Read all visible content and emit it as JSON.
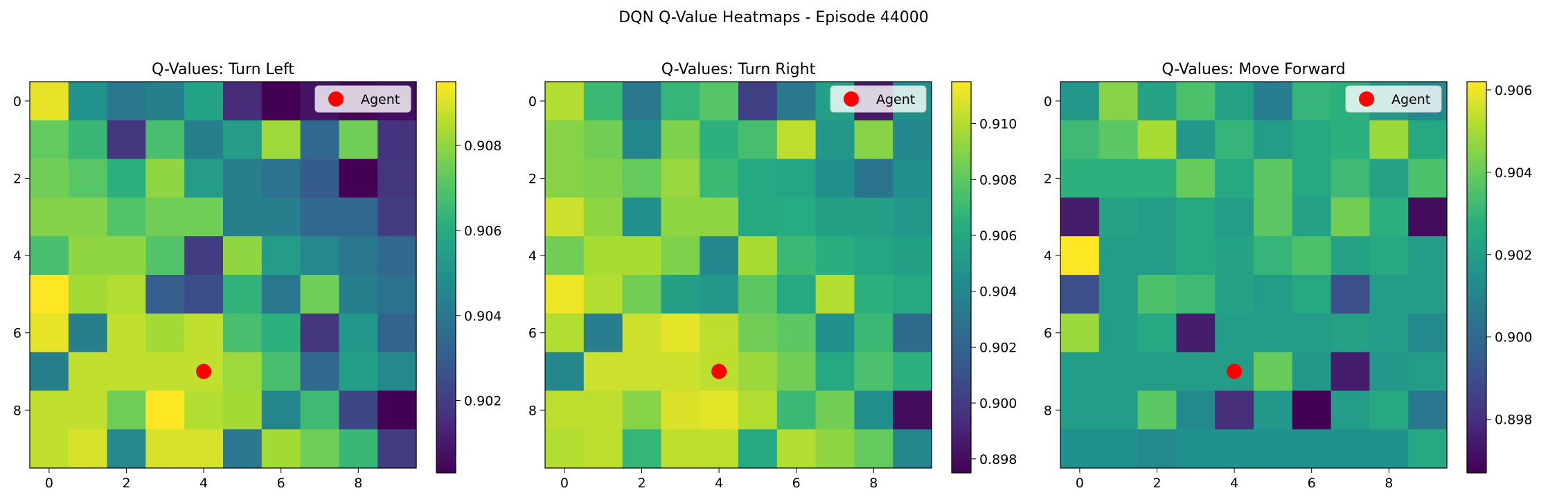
{
  "figure": {
    "title": "DQN Q-Value Heatmaps - Episode 44000"
  },
  "legend": {
    "label": "Agent",
    "marker_color": "#ff0000"
  },
  "colormap": "viridis",
  "chart_data": [
    {
      "type": "heatmap",
      "title": "Q-Values: Turn Left",
      "x_ticks": [
        "0",
        "2",
        "4",
        "6",
        "8"
      ],
      "y_ticks": [
        "0",
        "2",
        "4",
        "6",
        "8"
      ],
      "vmin": 0.9003,
      "vmax": 0.9095,
      "colorbar_ticks": [
        "0.902",
        "0.904",
        "0.906",
        "0.908"
      ],
      "colorbar_tick_values": [
        0.902,
        0.904,
        0.906,
        0.908
      ],
      "agent": {
        "col": 4,
        "row": 7
      },
      "legend_label": "Agent",
      "values": [
        [
          0.9092,
          0.905,
          0.904,
          0.9043,
          0.9057,
          0.9015,
          0.9003,
          0.9008,
          0.9005,
          0.9007
        ],
        [
          0.9073,
          0.9065,
          0.9018,
          0.9068,
          0.9043,
          0.9054,
          0.9082,
          0.9035,
          0.9075,
          0.9017
        ],
        [
          0.9075,
          0.9071,
          0.9062,
          0.908,
          0.9054,
          0.9043,
          0.9038,
          0.903,
          0.9003,
          0.9018
        ],
        [
          0.9078,
          0.9078,
          0.907,
          0.9075,
          0.9075,
          0.9043,
          0.9043,
          0.9035,
          0.9035,
          0.902
        ],
        [
          0.9068,
          0.908,
          0.908,
          0.907,
          0.902,
          0.908,
          0.9054,
          0.9046,
          0.904,
          0.9035
        ],
        [
          0.9095,
          0.9083,
          0.9085,
          0.9031,
          0.9025,
          0.9063,
          0.904,
          0.9075,
          0.9043,
          0.9038
        ],
        [
          0.9092,
          0.9043,
          0.9087,
          0.9083,
          0.9087,
          0.9068,
          0.9062,
          0.9018,
          0.9052,
          0.9033
        ],
        [
          0.9043,
          0.9087,
          0.9087,
          0.9087,
          0.9087,
          0.9082,
          0.9068,
          0.9035,
          0.9055,
          0.9046
        ],
        [
          0.9087,
          0.9087,
          0.9075,
          0.9095,
          0.9085,
          0.9083,
          0.9045,
          0.9066,
          0.9023,
          0.9003
        ],
        [
          0.9087,
          0.909,
          0.9046,
          0.909,
          0.909,
          0.904,
          0.9083,
          0.9075,
          0.9065,
          0.902
        ]
      ]
    },
    {
      "type": "heatmap",
      "title": "Q-Values: Turn Right",
      "x_ticks": [
        "0",
        "2",
        "4",
        "6",
        "8"
      ],
      "y_ticks": [
        "0",
        "2",
        "4",
        "6",
        "8"
      ],
      "vmin": 0.8975,
      "vmax": 0.9115,
      "colorbar_ticks": [
        "0.898",
        "0.900",
        "0.902",
        "0.904",
        "0.906",
        "0.908",
        "0.910"
      ],
      "colorbar_tick_values": [
        0.898,
        0.9,
        0.902,
        0.904,
        0.906,
        0.908,
        0.91
      ],
      "agent": {
        "col": 4,
        "row": 7
      },
      "legend_label": "Agent",
      "values": [
        [
          0.91,
          0.907,
          0.9032,
          0.9068,
          0.9078,
          0.9002,
          0.9032,
          0.9055,
          0.8985,
          0.9045
        ],
        [
          0.909,
          0.9085,
          0.904,
          0.9088,
          0.9065,
          0.9073,
          0.9102,
          0.905,
          0.909,
          0.904
        ],
        [
          0.909,
          0.9088,
          0.9082,
          0.9094,
          0.907,
          0.906,
          0.9058,
          0.9045,
          0.903,
          0.9045
        ],
        [
          0.9105,
          0.9092,
          0.9045,
          0.9092,
          0.9092,
          0.906,
          0.9062,
          0.9055,
          0.9055,
          0.905
        ],
        [
          0.9085,
          0.9098,
          0.9098,
          0.9088,
          0.904,
          0.9098,
          0.907,
          0.9064,
          0.9058,
          0.9055
        ],
        [
          0.9112,
          0.91,
          0.9085,
          0.9055,
          0.905,
          0.908,
          0.906,
          0.91,
          0.9065,
          0.906
        ],
        [
          0.91,
          0.9035,
          0.9105,
          0.911,
          0.9102,
          0.9085,
          0.908,
          0.9045,
          0.907,
          0.9025
        ],
        [
          0.904,
          0.9105,
          0.9105,
          0.9105,
          0.9102,
          0.9095,
          0.9085,
          0.906,
          0.9075,
          0.9065
        ],
        [
          0.9102,
          0.9102,
          0.909,
          0.9108,
          0.911,
          0.91,
          0.907,
          0.9085,
          0.9045,
          0.898
        ],
        [
          0.91,
          0.9102,
          0.9068,
          0.9102,
          0.9102,
          0.906,
          0.91,
          0.9092,
          0.9082,
          0.904
        ]
      ]
    },
    {
      "type": "heatmap",
      "title": "Q-Values: Move Forward",
      "x_ticks": [
        "0",
        "2",
        "4",
        "6",
        "8"
      ],
      "y_ticks": [
        "0",
        "2",
        "4",
        "6",
        "8"
      ],
      "vmin": 0.8967,
      "vmax": 0.9062,
      "colorbar_ticks": [
        "0.898",
        "0.900",
        "0.902",
        "0.904",
        "0.906"
      ],
      "colorbar_tick_values": [
        0.898,
        0.9,
        0.902,
        0.904,
        0.906
      ],
      "agent": {
        "col": 4,
        "row": 7
      },
      "legend_label": "Agent",
      "values": [
        [
          0.9018,
          0.9045,
          0.9022,
          0.9035,
          0.9022,
          0.9008,
          0.903,
          0.9028,
          0.9018,
          0.9012
        ],
        [
          0.9032,
          0.9038,
          0.905,
          0.9018,
          0.903,
          0.902,
          0.9025,
          0.9028,
          0.9048,
          0.9025
        ],
        [
          0.9028,
          0.9028,
          0.9028,
          0.904,
          0.9025,
          0.9038,
          0.9025,
          0.9032,
          0.9022,
          0.9035
        ],
        [
          0.8975,
          0.9022,
          0.902,
          0.9025,
          0.902,
          0.9038,
          0.9022,
          0.9042,
          0.9028,
          0.897
        ],
        [
          0.9062,
          0.902,
          0.902,
          0.9025,
          0.9022,
          0.903,
          0.9035,
          0.9022,
          0.9025,
          0.902
        ],
        [
          0.899,
          0.902,
          0.9035,
          0.9032,
          0.9022,
          0.902,
          0.9025,
          0.899,
          0.902,
          0.902
        ],
        [
          0.9048,
          0.902,
          0.9025,
          0.8975,
          0.902,
          0.902,
          0.902,
          0.9022,
          0.902,
          0.9012
        ],
        [
          0.902,
          0.902,
          0.902,
          0.902,
          0.902,
          0.904,
          0.9018,
          0.8975,
          0.9018,
          0.902
        ],
        [
          0.902,
          0.902,
          0.9038,
          0.9012,
          0.898,
          0.9018,
          0.8967,
          0.902,
          0.9025,
          0.9005
        ],
        [
          0.9015,
          0.9015,
          0.9012,
          0.9015,
          0.9015,
          0.9015,
          0.9015,
          0.9015,
          0.9015,
          0.9025
        ]
      ]
    }
  ]
}
